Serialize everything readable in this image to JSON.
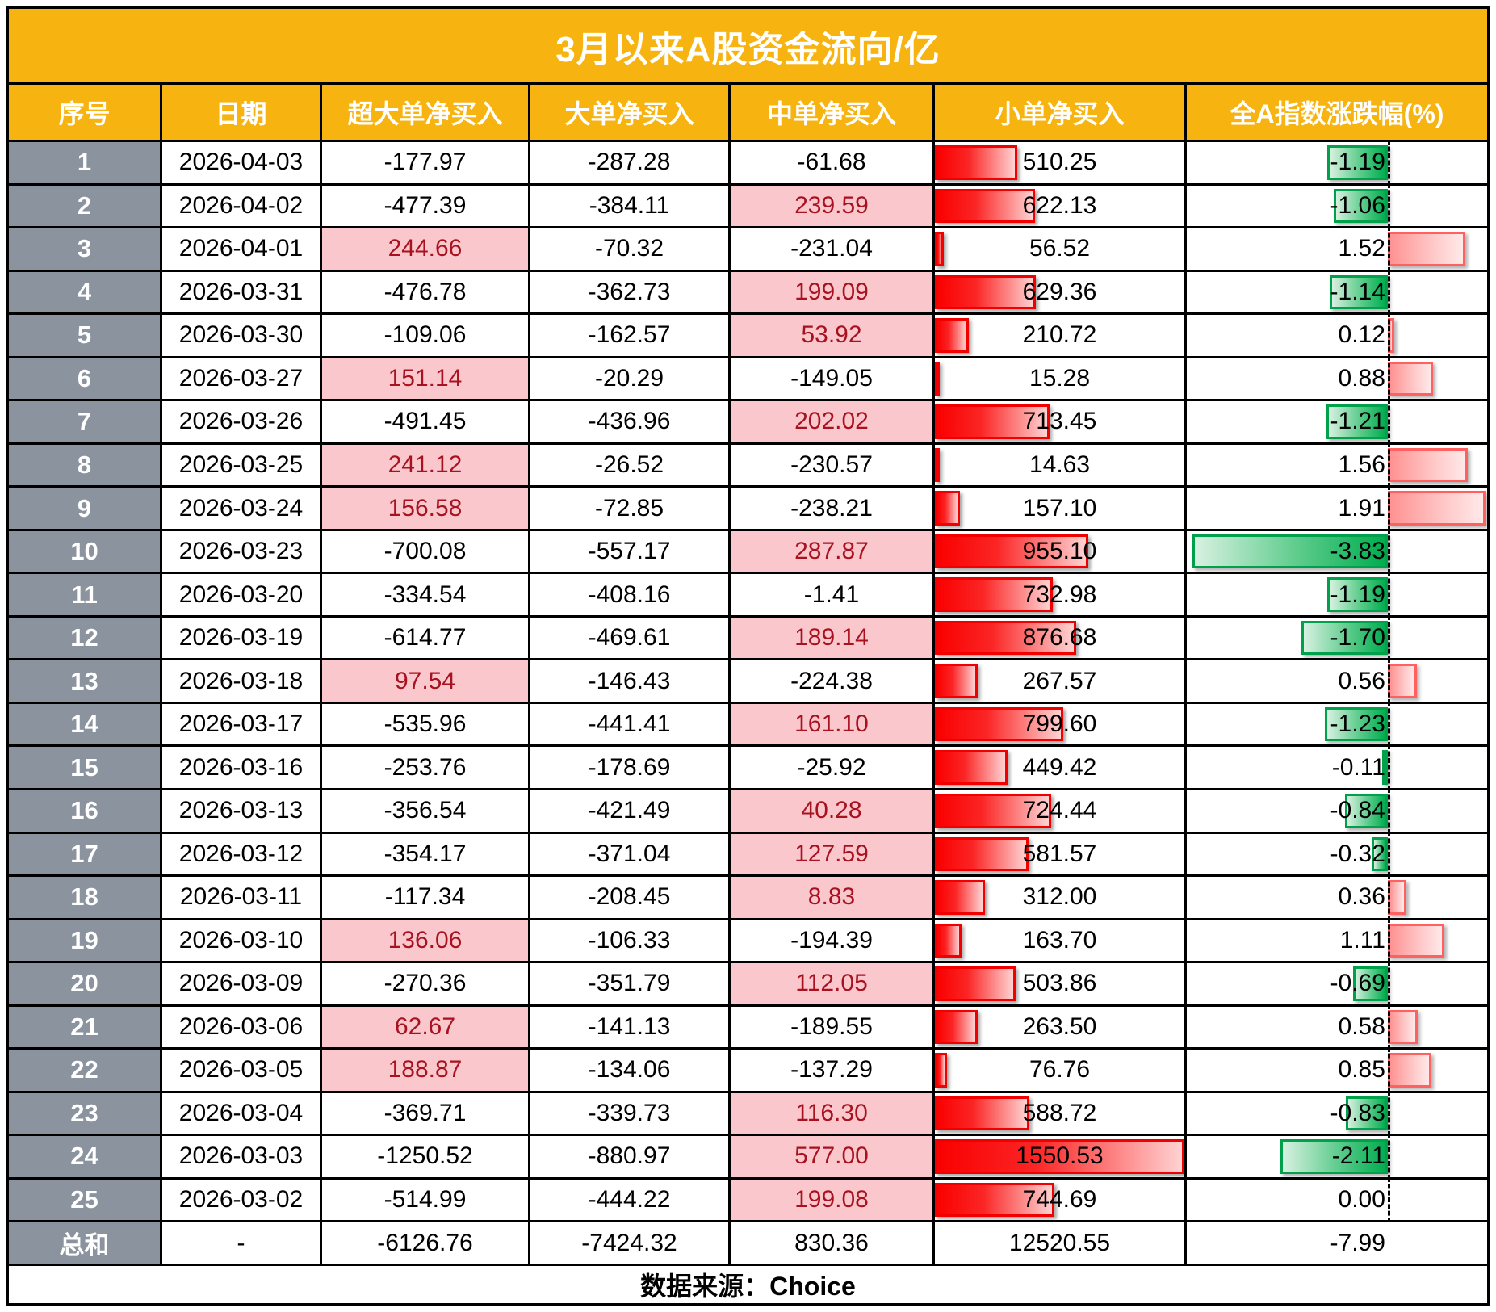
{
  "title": "3月以来A股资金流向/亿",
  "footer": {
    "source_label": "数据来源：Choice"
  },
  "colors": {
    "accent_orange": "#F7B411",
    "index_gray": "#8A939E",
    "highlight_pink_bg": "#FAC7CC",
    "highlight_pink_text": "#A81220",
    "databar_red": "#F20000",
    "databar_green": "#00A651",
    "change_bar_red": "#FF6161",
    "border_black": "#000000",
    "header_text": "#FFFFFF"
  },
  "chart_data": {
    "type": "table",
    "title": "3月以来A股资金流向/亿",
    "columns": [
      "序号",
      "日期",
      "超大单净买入",
      "大单净买入",
      "中单净买入",
      "小单净买入",
      "全A指数涨跌幅(%)"
    ],
    "rows": [
      [
        1,
        "2026-04-03",
        -177.97,
        -287.28,
        -61.68,
        510.25,
        -1.19
      ],
      [
        2,
        "2026-04-02",
        -477.39,
        -384.11,
        239.59,
        622.13,
        -1.06
      ],
      [
        3,
        "2026-04-01",
        244.66,
        -70.32,
        -231.04,
        56.52,
        1.52
      ],
      [
        4,
        "2026-03-31",
        -476.78,
        -362.73,
        199.09,
        629.36,
        -1.14
      ],
      [
        5,
        "2026-03-30",
        -109.06,
        -162.57,
        53.92,
        210.72,
        0.12
      ],
      [
        6,
        "2026-03-27",
        151.14,
        -20.29,
        -149.05,
        15.28,
        0.88
      ],
      [
        7,
        "2026-03-26",
        -491.45,
        -436.96,
        202.02,
        713.45,
        -1.21
      ],
      [
        8,
        "2026-03-25",
        241.12,
        -26.52,
        -230.57,
        14.63,
        1.56
      ],
      [
        9,
        "2026-03-24",
        156.58,
        -72.85,
        -238.21,
        157.1,
        1.91
      ],
      [
        10,
        "2026-03-23",
        -700.08,
        -557.17,
        287.87,
        955.1,
        -3.83
      ],
      [
        11,
        "2026-03-20",
        -334.54,
        -408.16,
        -1.41,
        732.98,
        -1.19
      ],
      [
        12,
        "2026-03-19",
        -614.77,
        -469.61,
        189.14,
        876.68,
        -1.7
      ],
      [
        13,
        "2026-03-18",
        97.54,
        -146.43,
        -224.38,
        267.57,
        0.56
      ],
      [
        14,
        "2026-03-17",
        -535.96,
        -441.41,
        161.1,
        799.6,
        -1.23
      ],
      [
        15,
        "2026-03-16",
        -253.76,
        -178.69,
        -25.92,
        449.42,
        -0.11
      ],
      [
        16,
        "2026-03-13",
        -356.54,
        -421.49,
        40.28,
        724.44,
        -0.84
      ],
      [
        17,
        "2026-03-12",
        -354.17,
        -371.04,
        127.59,
        581.57,
        -0.32
      ],
      [
        18,
        "2026-03-11",
        -117.34,
        -208.45,
        8.83,
        312.0,
        0.36
      ],
      [
        19,
        "2026-03-10",
        136.06,
        -106.33,
        -194.39,
        163.7,
        1.11
      ],
      [
        20,
        "2026-03-09",
        -270.36,
        -351.79,
        112.05,
        503.86,
        -0.69
      ],
      [
        21,
        "2026-03-06",
        62.67,
        -141.13,
        -189.55,
        263.5,
        0.58
      ],
      [
        22,
        "2026-03-05",
        188.87,
        -134.06,
        -137.29,
        76.76,
        0.85
      ],
      [
        23,
        "2026-03-04",
        -369.71,
        -339.73,
        116.3,
        588.72,
        -0.83
      ],
      [
        24,
        "2026-03-03",
        -1250.52,
        -880.97,
        577.0,
        1550.53,
        -2.11
      ],
      [
        25,
        "2026-03-02",
        -514.99,
        -444.22,
        199.08,
        744.69,
        0.0
      ]
    ],
    "total_row": [
      "总和",
      "-",
      -6126.76,
      -7424.32,
      830.36,
      12520.55,
      -7.99
    ],
    "databar_scales": {
      "small_col_max": 1550.53,
      "chg_col_min": -3.83,
      "chg_col_max": 1.91
    },
    "conditional_format": "positive values in 超大单净买入 and 中单净买入 shown with light-red fill and dark-red text",
    "source": "数据来源：Choice"
  }
}
